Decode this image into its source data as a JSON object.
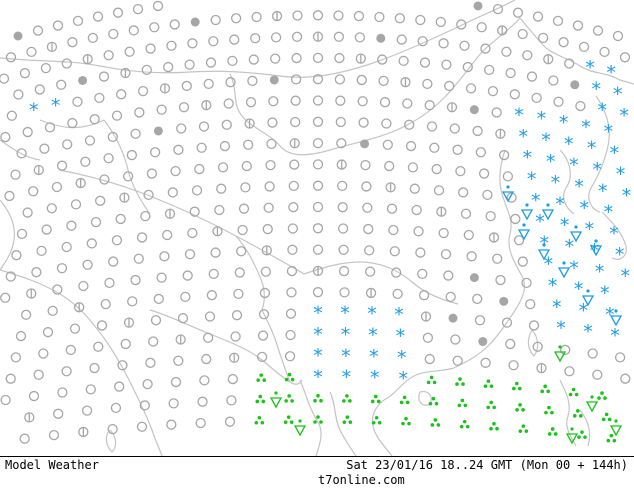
{
  "footer": {
    "title": "Model Weather",
    "datetime": "Sat 23/01/16 18..24 GMT (Mon 00 + 144h)",
    "site": "t7online.com"
  },
  "colors": {
    "coast": "#c4c4c4",
    "symbol_grey": "#a6a6a6",
    "snow": "#1e9be9",
    "rain": "#19c319",
    "fill_grey": "#a6a6a6"
  },
  "legend_symbols": {
    "clear": "open-circle-icon",
    "partly_cloudy": "half-circle-icon",
    "cloudy": "filled-circle-icon",
    "snow": "snowflake-asterisk-icon",
    "rain": "rain-dots-icon",
    "shower": "shower-triangle-icon"
  }
}
